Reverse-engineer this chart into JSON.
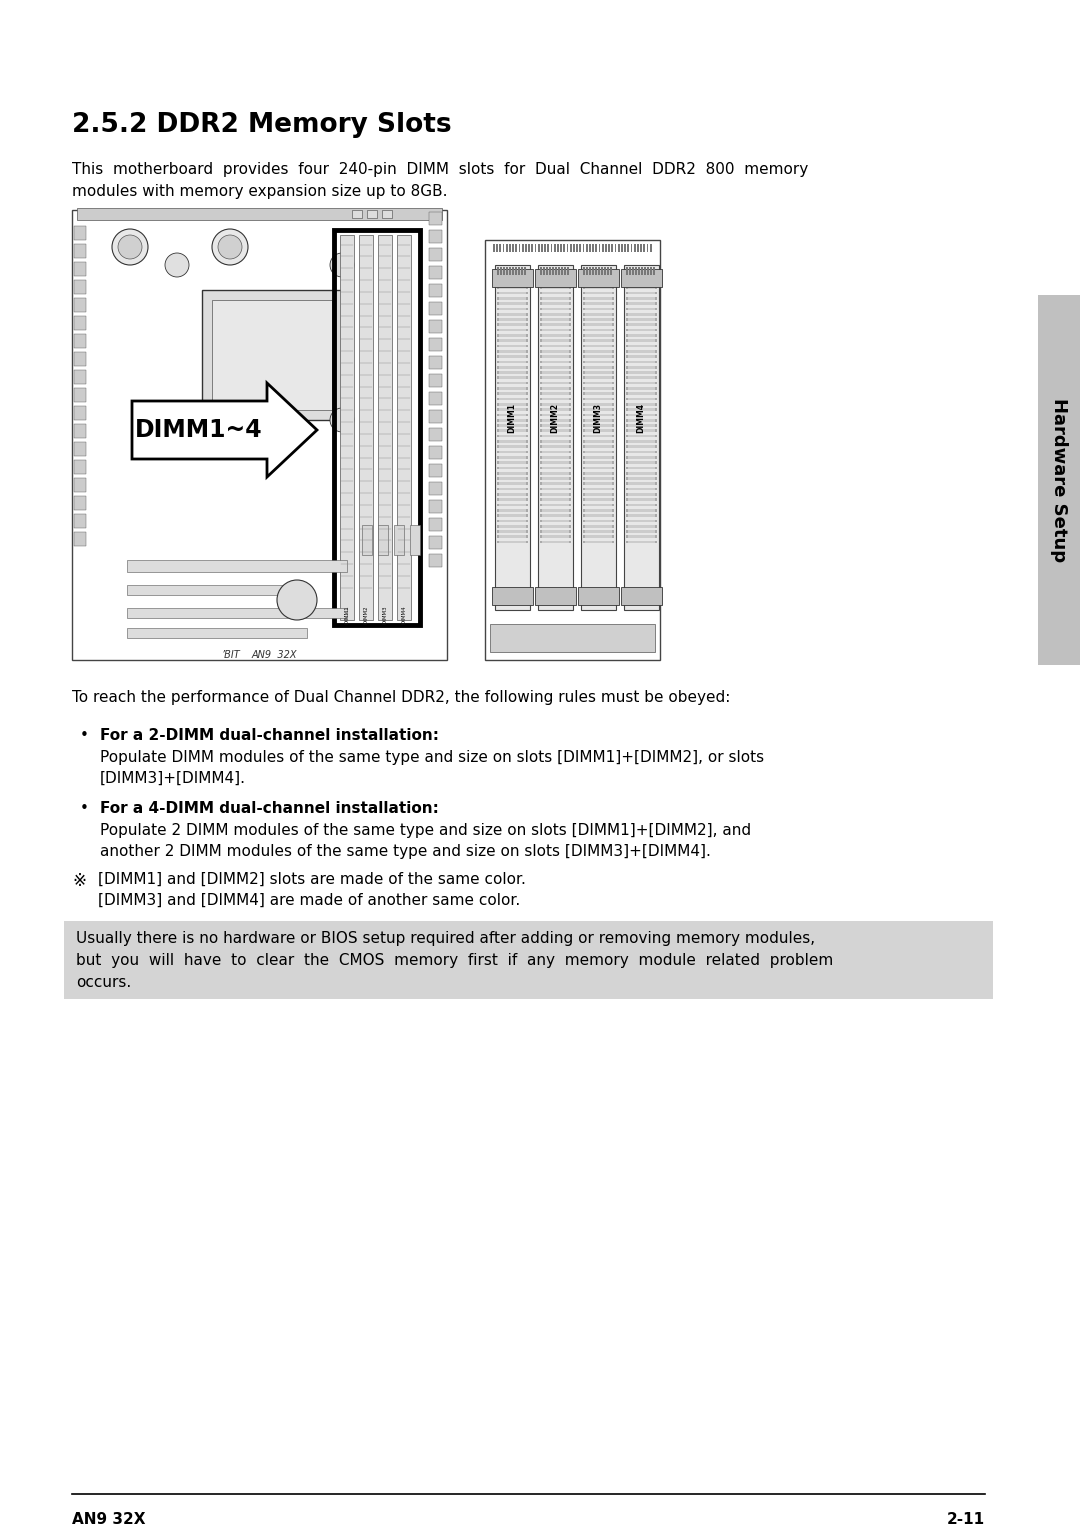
{
  "title": "2.5.2 DDR2 Memory Slots",
  "bg_color": "#ffffff",
  "sidebar_color": "#c0c0c0",
  "sidebar_text": "Hardware Setup",
  "body_font_size": 10.5,
  "intro_text_line1": "This  motherboard  provides  four  240-pin  DIMM  slots  for  Dual  Channel  DDR2  800  memory",
  "intro_text_line2": "modules with memory expansion size up to 8GB.",
  "dual_channel_intro": "To reach the performance of Dual Channel DDR2, the following rules must be obeyed:",
  "bullet1_bold": "For a 2-DIMM dual-channel installation:",
  "bullet1_text_line1": "Populate DIMM modules of the same type and size on slots [DIMM1]+[DIMM2], or slots",
  "bullet1_text_line2": "[DIMM3]+[DIMM4].",
  "bullet2_bold": "For a 4-DIMM dual-channel installation:",
  "bullet2_text_line1": "Populate 2 DIMM modules of the same type and size on slots [DIMM1]+[DIMM2], and",
  "bullet2_text_line2": "another 2 DIMM modules of the same type and size on slots [DIMM3]+[DIMM4].",
  "note_symbol": "※",
  "note_line1": "[DIMM1] and [DIMM2] slots are made of the same color.",
  "note_line2": "[DIMM3] and [DIMM4] are made of another same color.",
  "warning_bg": "#d4d4d4",
  "warning_text_line1": "Usually there is no hardware or BIOS setup required after adding or removing memory modules,",
  "warning_text_line2": "but  you  will  have  to  clear  the  CMOS  memory  first  if  any  memory  module  related  problem",
  "warning_text_line3": "occurs.",
  "footer_left": "AN9 32X",
  "footer_right": "2-11"
}
